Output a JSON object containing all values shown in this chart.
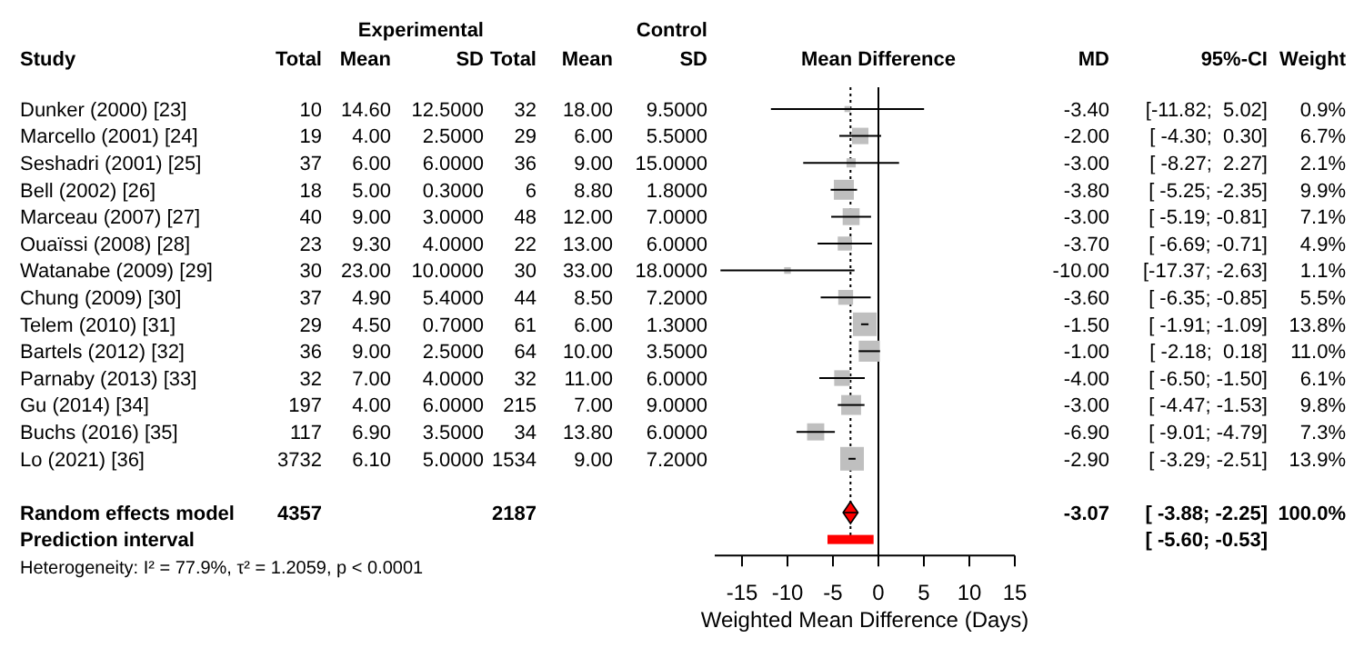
{
  "chart_data": [
    {
      "type": "other",
      "ylabel": "Study",
      "annotations": [
        "Experimental",
        "Control",
        "Heterogeneity: I² = 77.9%, τ² = 1.2059, p < 0.0001"
      ],
      "categories": [
        "Total",
        "Mean",
        "SD",
        "Total",
        "Mean",
        "SD"
      ],
      "y_categories": [
        "Dunker (2000) [23]",
        "Marcello (2001) [24]",
        "Seshadri (2001) [25]",
        "Bell (2002) [26]",
        "Marceau (2007) [27]",
        "Ouaïssi (2008) [28]",
        "Watanabe (2009) [29]",
        "Chung (2009) [30]",
        "Telem (2010) [31]",
        "Bartels (2012) [32]",
        "Parnaby (2013) [33]",
        "Gu (2014) [34]",
        "Buchs (2016) [35]",
        "Lo (2021) [36]",
        null,
        "Random effects model",
        "Prediction interval"
      ],
      "cell_labels": [
        [
          "10",
          "14.60",
          "12.5000",
          "32",
          "18.00",
          "9.5000"
        ],
        [
          "19",
          "4.00",
          "2.5000",
          "29",
          "6.00",
          "5.5000"
        ],
        [
          "37",
          "6.00",
          "6.0000",
          "36",
          "9.00",
          "15.0000"
        ],
        [
          "18",
          "5.00",
          "0.3000",
          "6",
          "8.80",
          "1.8000"
        ],
        [
          "40",
          "9.00",
          "3.0000",
          "48",
          "12.00",
          "7.0000"
        ],
        [
          "23",
          "9.30",
          "4.0000",
          "22",
          "13.00",
          "6.0000"
        ],
        [
          "30",
          "23.00",
          "10.0000",
          "30",
          "33.00",
          "18.0000"
        ],
        [
          "37",
          "4.90",
          "5.4000",
          "44",
          "8.50",
          "7.2000"
        ],
        [
          "29",
          "4.50",
          "0.7000",
          "61",
          "6.00",
          "1.3000"
        ],
        [
          "36",
          "9.00",
          "2.5000",
          "64",
          "10.00",
          "3.5000"
        ],
        [
          "32",
          "7.00",
          "4.0000",
          "32",
          "11.00",
          "6.0000"
        ],
        [
          "197",
          "4.00",
          "6.0000",
          "215",
          "7.00",
          "9.0000"
        ],
        [
          "117",
          "6.90",
          "3.5000",
          "34",
          "13.80",
          "6.0000"
        ],
        [
          "3732",
          "6.10",
          "5.0000",
          "1534",
          "9.00",
          "7.2000"
        ],
        [
          null,
          null,
          null,
          null,
          null,
          null
        ],
        [
          "4357",
          null,
          null,
          "2187",
          null,
          null
        ],
        [
          null,
          null,
          null,
          null,
          null,
          null
        ]
      ]
    },
    {
      "type": "scatter",
      "orientation": "horizontal",
      "title": "Mean Difference",
      "xlabel": "Weighted Mean Difference (Days)",
      "tick_labels": "x",
      "categories": [
        null,
        null,
        null,
        null,
        null,
        null,
        null,
        null,
        null,
        null,
        null,
        null,
        null,
        null,
        null,
        null,
        null
      ],
      "xlim": [
        -18,
        15
      ],
      "xticks": [
        -15,
        -10,
        -5,
        0,
        5,
        10,
        15
      ],
      "ref_lines": [
        {
          "axis": "x",
          "value": 0,
          "color": "#000000",
          "line_style": "solid"
        },
        {
          "axis": "x",
          "value": -3.07,
          "color": "#000000",
          "line_style": "dotted"
        }
      ],
      "series": [
        {
          "type": "bubble",
          "marker": "square",
          "color": "#bfbfbf",
          "values": [
            -3.4,
            -2,
            -3,
            -3.8,
            -3,
            -3.7,
            -10,
            -3.6,
            -1.5,
            -1,
            -4,
            -3,
            -6.9,
            -2.9,
            null,
            null,
            null
          ],
          "sizes": [
            0.065,
            0.482,
            0.151,
            0.712,
            0.511,
            0.353,
            0.079,
            0.396,
            0.993,
            0.791,
            0.439,
            0.705,
            0.525,
            1,
            null,
            null,
            null
          ],
          "errors": [
            [
              -11.82,
              5.02
            ],
            [
              -4.3,
              0.3
            ],
            [
              -8.27,
              2.27
            ],
            [
              -5.25,
              -2.35
            ],
            [
              -5.19,
              -0.81
            ],
            [
              -6.69,
              -0.71
            ],
            [
              -17.37,
              -2.63
            ],
            [
              -6.35,
              -0.85
            ],
            [
              -1.91,
              -1.09
            ],
            [
              -2.18,
              0.18
            ],
            [
              -6.5,
              -1.5
            ],
            [
              -4.47,
              -1.53
            ],
            [
              -9.01,
              -4.79
            ],
            [
              -3.29,
              -2.51
            ],
            null,
            null,
            null
          ]
        },
        {
          "type": "scatter",
          "marker": "diamond",
          "color": "#ff0000",
          "values": [
            null,
            null,
            null,
            null,
            null,
            null,
            null,
            null,
            null,
            null,
            null,
            null,
            null,
            null,
            null,
            -3.07,
            null
          ],
          "errors": [
            null,
            null,
            null,
            null,
            null,
            null,
            null,
            null,
            null,
            null,
            null,
            null,
            null,
            null,
            null,
            [
              -3.88,
              -2.25
            ],
            null
          ]
        },
        {
          "type": "bar",
          "color": "#ff0000",
          "base": [
            null,
            null,
            null,
            null,
            null,
            null,
            null,
            null,
            null,
            null,
            null,
            null,
            null,
            null,
            null,
            null,
            -5.6
          ],
          "values": [
            null,
            null,
            null,
            null,
            null,
            null,
            null,
            null,
            null,
            null,
            null,
            null,
            null,
            null,
            null,
            null,
            5.07
          ]
        }
      ]
    },
    {
      "type": "other",
      "categories": [
        "MD",
        "95%-CI",
        "Weight"
      ],
      "y_categories": [
        null,
        null,
        null,
        null,
        null,
        null,
        null,
        null,
        null,
        null,
        null,
        null,
        null,
        null,
        null,
        null,
        null
      ],
      "cell_labels": [
        [
          "-3.40",
          "[-11.82;  5.02]",
          "0.9%"
        ],
        [
          "-2.00",
          "[ -4.30;  0.30]",
          "6.7%"
        ],
        [
          "-3.00",
          "[ -8.27;  2.27]",
          "2.1%"
        ],
        [
          "-3.80",
          "[ -5.25; -2.35]",
          "9.9%"
        ],
        [
          "-3.00",
          "[ -5.19; -0.81]",
          "7.1%"
        ],
        [
          "-3.70",
          "[ -6.69; -0.71]",
          "4.9%"
        ],
        [
          "-10.00",
          "[-17.37; -2.63]",
          "1.1%"
        ],
        [
          "-3.60",
          "[ -6.35; -0.85]",
          "5.5%"
        ],
        [
          "-1.50",
          "[ -1.91; -1.09]",
          "13.8%"
        ],
        [
          "-1.00",
          "[ -2.18;  0.18]",
          "11.0%"
        ],
        [
          "-4.00",
          "[ -6.50; -1.50]",
          "6.1%"
        ],
        [
          "-3.00",
          "[ -4.47; -1.53]",
          "9.8%"
        ],
        [
          "-6.90",
          "[ -9.01; -4.79]",
          "7.3%"
        ],
        [
          "-2.90",
          "[ -3.29; -2.51]",
          "13.9%"
        ],
        [
          null,
          null,
          null
        ],
        [
          "-3.07",
          "[ -3.88; -2.25]",
          "100.0%"
        ],
        [
          null,
          "[ -5.60; -0.53]",
          null
        ]
      ]
    }
  ]
}
